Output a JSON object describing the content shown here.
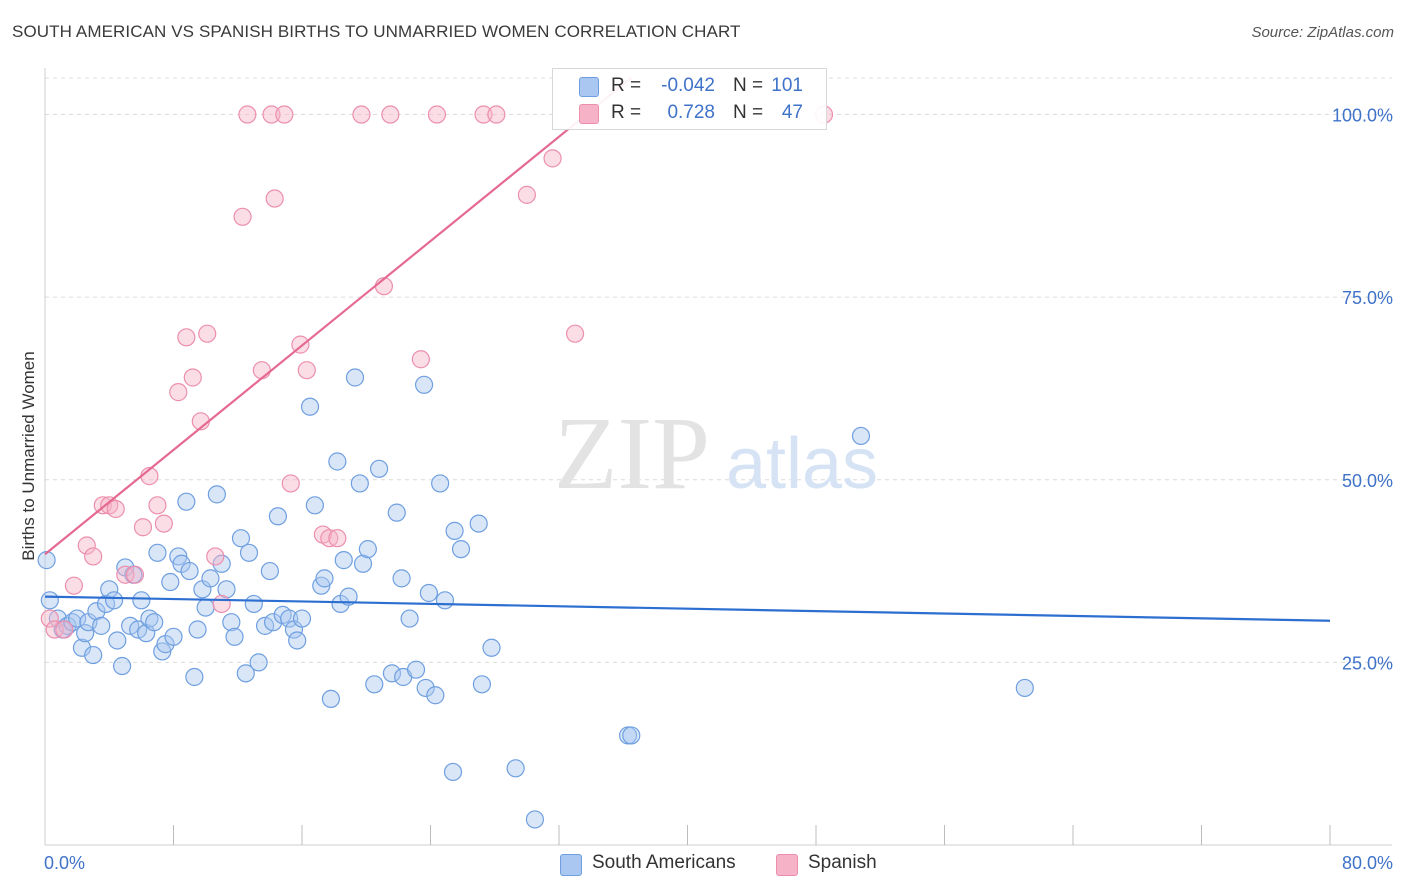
{
  "title": "SOUTH AMERICAN VS SPANISH BIRTHS TO UNMARRIED WOMEN CORRELATION CHART",
  "source": "Source: ZipAtlas.com",
  "watermark": {
    "zip": "ZIP",
    "atlas": "atlas"
  },
  "legend": {
    "rows": [
      {
        "r_label": "R =",
        "r_value": "-0.042",
        "n_label": "N =",
        "n_value": "101",
        "color": "#a9c7f0"
      },
      {
        "r_label": "R =",
        "r_value": "0.728",
        "n_label": "N =",
        "n_value": "47",
        "color": "#f6b3c8"
      }
    ]
  },
  "bottom_legend": [
    {
      "label": "South Americans",
      "color": "#a9c7f0"
    },
    {
      "label": "Spanish",
      "color": "#f6b3c8"
    }
  ],
  "chart_data": {
    "type": "scatter",
    "title": "SOUTH AMERICAN VS SPANISH BIRTHS TO UNMARRIED WOMEN CORRELATION CHART",
    "xlabel": "",
    "ylabel": "Births to Unmarried Women",
    "xlim": [
      0,
      80
    ],
    "ylim": [
      0,
      105
    ],
    "x_tick_labels": {
      "min": "0.0%",
      "max": "80.0%"
    },
    "y_ticks": [
      25,
      50,
      75,
      100
    ],
    "y_tick_labels": [
      "25.0%",
      "50.0%",
      "75.0%",
      "100.0%"
    ],
    "grid": true,
    "series": [
      {
        "name": "South Americans",
        "color": "#6f9fe0",
        "fill": "#a9c7f0",
        "trend": {
          "x0": 0,
          "y0": 34.0,
          "x1": 80,
          "y1": 30.7,
          "color": "#2c6fd1"
        },
        "points": [
          [
            0.1,
            39
          ],
          [
            0.3,
            33.5
          ],
          [
            0.8,
            31
          ],
          [
            1.1,
            29.5
          ],
          [
            1.4,
            30
          ],
          [
            1.7,
            30.5
          ],
          [
            2.0,
            31
          ],
          [
            2.3,
            27
          ],
          [
            2.5,
            29
          ],
          [
            2.7,
            30.5
          ],
          [
            3.0,
            26
          ],
          [
            3.2,
            32
          ],
          [
            3.5,
            30
          ],
          [
            3.8,
            33
          ],
          [
            4.0,
            35
          ],
          [
            4.3,
            33.5
          ],
          [
            4.5,
            28
          ],
          [
            4.8,
            24.5
          ],
          [
            5.0,
            38
          ],
          [
            5.3,
            30
          ],
          [
            5.5,
            37
          ],
          [
            5.8,
            29.5
          ],
          [
            6.0,
            33.5
          ],
          [
            6.3,
            29
          ],
          [
            6.5,
            31
          ],
          [
            6.8,
            30.5
          ],
          [
            7.0,
            40
          ],
          [
            7.3,
            26.5
          ],
          [
            7.5,
            27.5
          ],
          [
            7.8,
            36
          ],
          [
            8.0,
            28.5
          ],
          [
            8.3,
            39.5
          ],
          [
            8.5,
            38.5
          ],
          [
            8.8,
            47
          ],
          [
            9.0,
            37.5
          ],
          [
            9.3,
            23
          ],
          [
            9.5,
            29.5
          ],
          [
            9.8,
            35
          ],
          [
            10.0,
            32.5
          ],
          [
            10.3,
            36.5
          ],
          [
            10.7,
            48
          ],
          [
            11.0,
            38.5
          ],
          [
            11.3,
            35
          ],
          [
            11.6,
            30.5
          ],
          [
            11.8,
            28.5
          ],
          [
            12.2,
            42
          ],
          [
            12.5,
            23.5
          ],
          [
            12.7,
            40
          ],
          [
            13.0,
            33
          ],
          [
            13.3,
            25
          ],
          [
            13.7,
            30
          ],
          [
            14.0,
            37.5
          ],
          [
            14.2,
            30.5
          ],
          [
            14.5,
            45
          ],
          [
            14.8,
            31.5
          ],
          [
            15.2,
            31
          ],
          [
            15.5,
            29.5
          ],
          [
            15.7,
            28
          ],
          [
            16.0,
            31
          ],
          [
            16.5,
            60
          ],
          [
            16.8,
            46.5
          ],
          [
            17.2,
            35.5
          ],
          [
            17.4,
            36.5
          ],
          [
            17.8,
            20
          ],
          [
            18.2,
            52.5
          ],
          [
            18.4,
            33
          ],
          [
            18.6,
            39
          ],
          [
            18.9,
            34
          ],
          [
            19.3,
            64
          ],
          [
            19.6,
            49.5
          ],
          [
            19.8,
            38.5
          ],
          [
            20.1,
            40.5
          ],
          [
            20.5,
            22
          ],
          [
            20.8,
            51.5
          ],
          [
            21.6,
            23.5
          ],
          [
            21.9,
            45.5
          ],
          [
            22.2,
            36.5
          ],
          [
            22.3,
            23
          ],
          [
            22.7,
            31
          ],
          [
            23.1,
            24
          ],
          [
            23.6,
            63
          ],
          [
            23.7,
            21.5
          ],
          [
            23.9,
            34.5
          ],
          [
            24.3,
            20.5
          ],
          [
            24.6,
            49.5
          ],
          [
            24.9,
            33.5
          ],
          [
            25.4,
            10
          ],
          [
            25.5,
            43
          ],
          [
            25.9,
            40.5
          ],
          [
            27.0,
            44
          ],
          [
            27.2,
            22
          ],
          [
            27.8,
            27
          ],
          [
            29.3,
            10.5
          ],
          [
            30.5,
            3.5
          ],
          [
            36.3,
            15
          ],
          [
            36.5,
            15
          ],
          [
            50.8,
            56
          ],
          [
            61.0,
            21.5
          ]
        ]
      },
      {
        "name": "Spanish",
        "color": "#ec8fae",
        "fill": "#f6b3c8",
        "trend": {
          "x0": 0,
          "y0": 39.8,
          "x1": 36.5,
          "y1": 105,
          "color": "#e56a92"
        },
        "points": [
          [
            0.3,
            31
          ],
          [
            0.6,
            29.5
          ],
          [
            1.2,
            29.5
          ],
          [
            1.8,
            35.5
          ],
          [
            2.6,
            41
          ],
          [
            3.0,
            39.5
          ],
          [
            3.6,
            46.5
          ],
          [
            4.0,
            46.5
          ],
          [
            4.4,
            46
          ],
          [
            5.0,
            37
          ],
          [
            5.6,
            37
          ],
          [
            6.1,
            43.5
          ],
          [
            6.5,
            50.5
          ],
          [
            7.0,
            46.5
          ],
          [
            7.4,
            44
          ],
          [
            8.3,
            62
          ],
          [
            8.8,
            69.5
          ],
          [
            9.2,
            64
          ],
          [
            9.7,
            58
          ],
          [
            10.1,
            70
          ],
          [
            10.6,
            39.5
          ],
          [
            11.0,
            33
          ],
          [
            12.3,
            86
          ],
          [
            12.6,
            100
          ],
          [
            13.5,
            65
          ],
          [
            14.1,
            100
          ],
          [
            14.3,
            88.5
          ],
          [
            14.9,
            100
          ],
          [
            15.3,
            49.5
          ],
          [
            15.9,
            68.5
          ],
          [
            16.3,
            65
          ],
          [
            17.3,
            42.5
          ],
          [
            17.7,
            42
          ],
          [
            18.2,
            42
          ],
          [
            19.7,
            100
          ],
          [
            21.1,
            76.5
          ],
          [
            21.5,
            100
          ],
          [
            23.4,
            66.5
          ],
          [
            24.4,
            100
          ],
          [
            27.3,
            100
          ],
          [
            28.1,
            100
          ],
          [
            30.0,
            89
          ],
          [
            31.6,
            94
          ],
          [
            33.0,
            70
          ],
          [
            48.5,
            100
          ]
        ]
      }
    ]
  }
}
